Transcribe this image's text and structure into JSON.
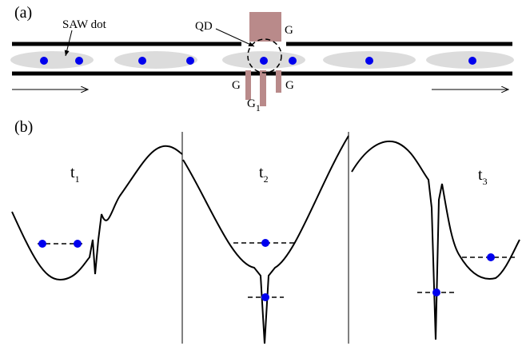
{
  "panel_a": {
    "label": "(a)",
    "saw_dot": "SAW dot",
    "qd": "QD",
    "gates": [
      "G",
      "G",
      "G"
    ],
    "g1": {
      "base": "G",
      "sub": "1"
    }
  },
  "panel_b": {
    "label": "(b)",
    "times": [
      {
        "base": "t",
        "sub": "1"
      },
      {
        "base": "t",
        "sub": "2"
      },
      {
        "base": "t",
        "sub": "3"
      }
    ]
  }
}
